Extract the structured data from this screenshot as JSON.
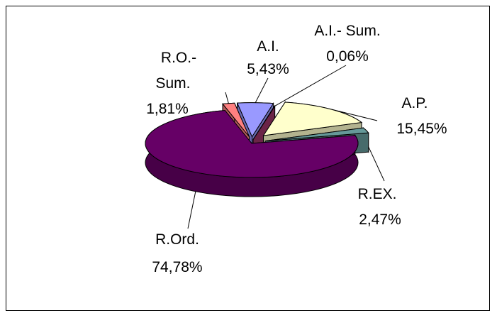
{
  "chart_data": {
    "type": "pie",
    "style": "3d-exploded",
    "slices": [
      {
        "label": "A.I.",
        "value": 5.43,
        "value_label": "5,43%",
        "color": "#9999ff"
      },
      {
        "label": "A.I.- Sum.",
        "value": 0.06,
        "value_label": "0,06%",
        "color": "#993366"
      },
      {
        "label": "A.P.",
        "value": 15.45,
        "value_label": "15,45%",
        "color": "#ffffcc"
      },
      {
        "label": "R.EX.",
        "value": 2.47,
        "value_label": "2,47%",
        "color": "#669999"
      },
      {
        "label": "R.Ord.",
        "value": 74.78,
        "value_label": "74,78%",
        "color": "#660066"
      },
      {
        "label": "R.O.-Sum.",
        "value": 1.81,
        "value_label": "1,81%",
        "color": "#ff8080"
      }
    ],
    "legend": "none"
  }
}
